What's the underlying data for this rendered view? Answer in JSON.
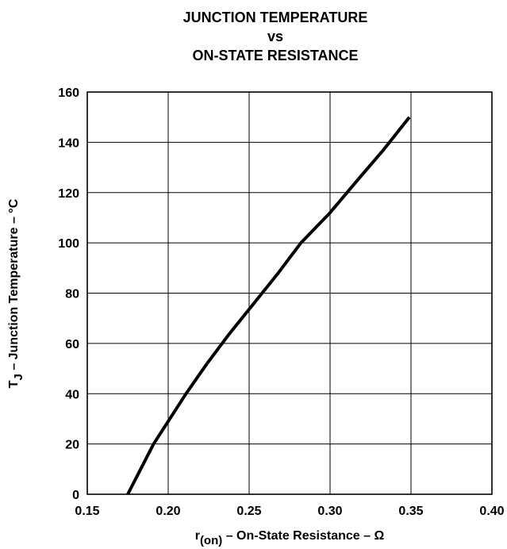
{
  "chart_data": {
    "type": "line",
    "title_lines": [
      "JUNCTION TEMPERATURE",
      "vs",
      "ON-STATE RESISTANCE"
    ],
    "xlabel": {
      "main": "r",
      "sub": "(on)",
      "rest": " – On-State Resistance – Ω"
    },
    "ylabel": {
      "main": "T",
      "sub": "J",
      "rest": " – Junction Temperature – °C"
    },
    "xlim": [
      0.15,
      0.4
    ],
    "ylim": [
      0,
      160
    ],
    "x_ticks": [
      "0.15",
      "0.20",
      "0.25",
      "0.30",
      "0.35",
      "0.40"
    ],
    "y_ticks": [
      "0",
      "20",
      "40",
      "60",
      "80",
      "100",
      "120",
      "140",
      "160"
    ],
    "grid": true,
    "series": [
      {
        "color": "#000000",
        "points": [
          [
            0.175,
            0
          ],
          [
            0.183,
            10
          ],
          [
            0.191,
            20
          ],
          [
            0.2,
            29
          ],
          [
            0.211,
            40
          ],
          [
            0.224,
            52
          ],
          [
            0.238,
            64
          ],
          [
            0.253,
            76
          ],
          [
            0.268,
            88
          ],
          [
            0.282,
            100
          ],
          [
            0.3,
            112
          ],
          [
            0.317,
            125
          ],
          [
            0.333,
            137
          ],
          [
            0.349,
            150
          ]
        ]
      }
    ]
  }
}
